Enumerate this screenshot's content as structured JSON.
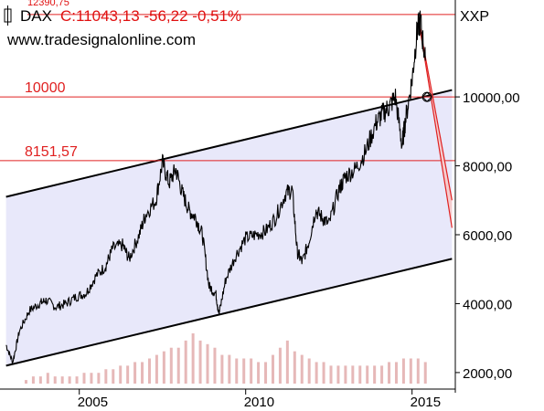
{
  "header": {
    "symbol": "DAX",
    "quote": "C:11043,13 -56,22 -0,51%",
    "website": "www.tradesignalonline.com",
    "top_label": "12390,75",
    "scale_label": "XXP"
  },
  "colors": {
    "channel_fill": "#e8e8fa",
    "channel_line": "#000000",
    "level_line": "#e02020",
    "projection_fill": "#f6c9c9",
    "price_line": "#000000",
    "volume_bar": "#e6b8b8",
    "header_red": "#e01010"
  },
  "chart_data": {
    "type": "line",
    "title": "DAX",
    "series": [
      {
        "name": "DAX",
        "x": [
          2002.8,
          2003.0,
          2003.2,
          2003.5,
          2003.8,
          2004.0,
          2004.3,
          2004.6,
          2004.9,
          2005.2,
          2005.5,
          2005.8,
          2006.0,
          2006.3,
          2006.5,
          2006.8,
          2007.0,
          2007.3,
          2007.5,
          2007.7,
          2007.9,
          2008.1,
          2008.3,
          2008.5,
          2008.7,
          2008.9,
          2009.1,
          2009.2,
          2009.4,
          2009.7,
          2010.0,
          2010.3,
          2010.6,
          2010.9,
          2011.2,
          2011.4,
          2011.55,
          2011.7,
          2011.9,
          2012.1,
          2012.3,
          2012.5,
          2012.8,
          2013.0,
          2013.3,
          2013.6,
          2013.9,
          2014.1,
          2014.3,
          2014.5,
          2014.7,
          2014.8,
          2015.0,
          2015.15,
          2015.25,
          2015.4
        ],
        "values": [
          2800,
          2300,
          3200,
          3800,
          4000,
          4100,
          3900,
          4000,
          4200,
          4300,
          4800,
          5100,
          5600,
          5700,
          5300,
          6000,
          6600,
          7000,
          8100,
          7500,
          7900,
          7200,
          6700,
          6500,
          6000,
          4500,
          4300,
          3700,
          4700,
          5400,
          5900,
          6000,
          6100,
          6500,
          7200,
          7300,
          5500,
          5200,
          5800,
          6700,
          6500,
          6300,
          7300,
          7700,
          7900,
          8400,
          9200,
          9500,
          9700,
          10000,
          8600,
          9300,
          10500,
          11900,
          12200,
          11050
        ]
      }
    ],
    "volume": [
      1,
      2,
      2,
      3,
      2,
      2,
      2,
      2,
      3,
      3,
      3,
      4,
      4,
      5,
      5,
      6,
      6,
      7,
      8,
      9,
      10,
      10,
      12,
      14,
      12,
      11,
      10,
      8,
      8,
      7,
      7,
      7,
      6,
      6,
      8,
      10,
      12,
      9,
      8,
      7,
      6,
      6,
      5,
      5,
      5,
      5,
      5,
      5,
      5,
      5,
      6,
      6,
      7,
      7,
      7,
      6
    ],
    "levels": [
      {
        "label": "10000",
        "value": 10000
      },
      {
        "label": "8151,57",
        "value": 8151.57
      },
      {
        "label": "12390,75",
        "value": 12390.75
      }
    ],
    "channel": {
      "upper": {
        "start": [
          2002.8,
          7100
        ],
        "end": [
          2016.2,
          10200
        ]
      },
      "lower": {
        "start": [
          2002.8,
          2200
        ],
        "end": [
          2016.2,
          5300
        ]
      }
    },
    "projection": {
      "start": [
        2015.2,
        12200
      ],
      "end_high": [
        2016.2,
        7000
      ],
      "end_low": [
        2016.2,
        6200
      ],
      "marker": [
        2015.45,
        10000
      ]
    },
    "x_axis": {
      "ticks": [
        2005,
        2010,
        2015
      ],
      "labels": [
        "2005",
        "2010",
        "2015"
      ]
    },
    "y_axis": {
      "ticks": [
        2000,
        4000,
        6000,
        8000,
        10000
      ],
      "labels": [
        "2000,00",
        "4000,00",
        "6000,00",
        "8000,00",
        "10000,00"
      ],
      "side": "right"
    },
    "xlim": [
      2002.7,
      2016.3
    ],
    "ylim": [
      1600,
      12600
    ],
    "grid": false,
    "legend": "none"
  }
}
